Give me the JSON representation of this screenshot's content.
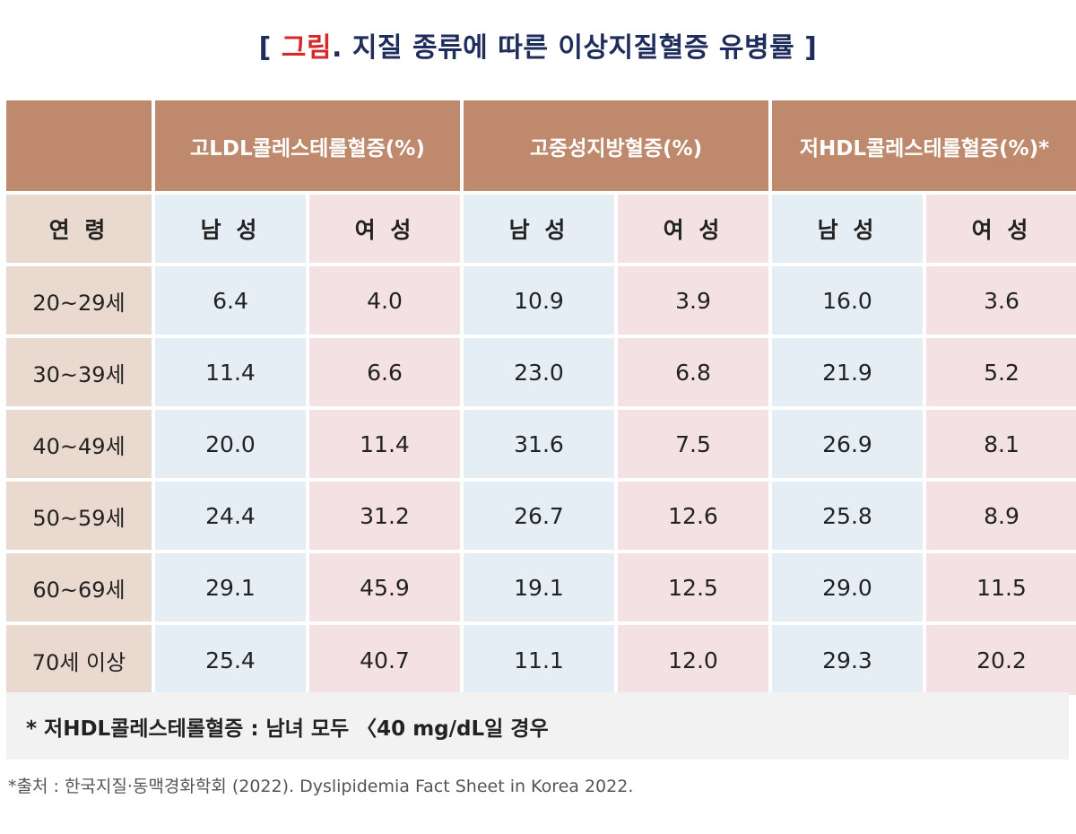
{
  "title": {
    "bracket_open": "[ ",
    "highlight": "그림",
    "rest": ". 지질 종류에 따른 이상지질혈증 유병률 ]"
  },
  "groups": [
    "고LDL콜레스테롤혈증(%)",
    "고중성지방혈증(%)",
    "저HDL콜레스테롤혈증(%)*"
  ],
  "age_label": "연 령",
  "sub_labels": [
    "남 성",
    "여 성",
    "남 성",
    "여 성",
    "남 성",
    "여 성"
  ],
  "rows": [
    {
      "age": "20~29세",
      "values": [
        "6.4",
        "4.0",
        "10.9",
        "3.9",
        "16.0",
        "3.6"
      ]
    },
    {
      "age": "30~39세",
      "values": [
        "11.4",
        "6.6",
        "23.0",
        "6.8",
        "21.9",
        "5.2"
      ]
    },
    {
      "age": "40~49세",
      "values": [
        "20.0",
        "11.4",
        "31.6",
        "7.5",
        "26.9",
        "8.1"
      ]
    },
    {
      "age": "50~59세",
      "values": [
        "24.4",
        "31.2",
        "26.7",
        "12.6",
        "25.8",
        "8.9"
      ]
    },
    {
      "age": "60~69세",
      "values": [
        "29.1",
        "45.9",
        "19.1",
        "12.5",
        "29.0",
        "11.5"
      ]
    },
    {
      "age": "70세 이상",
      "values": [
        "25.4",
        "40.7",
        "11.1",
        "12.0",
        "29.3",
        "20.2"
      ]
    }
  ],
  "note": "* 저HDL콜레스테롤혈증 : 남녀 모두 〈40 mg/dL일 경우",
  "source": "*출처 : 한국지질·동맥경화학회 (2022). Dyslipidemia Fact Sheet in Korea 2022.",
  "colors": {
    "header": "#bf896d",
    "age": "#ead9cf",
    "male": "#e5eef4",
    "female": "#f3e1e3",
    "title": "#1f2d5c",
    "highlight": "#d62828"
  }
}
